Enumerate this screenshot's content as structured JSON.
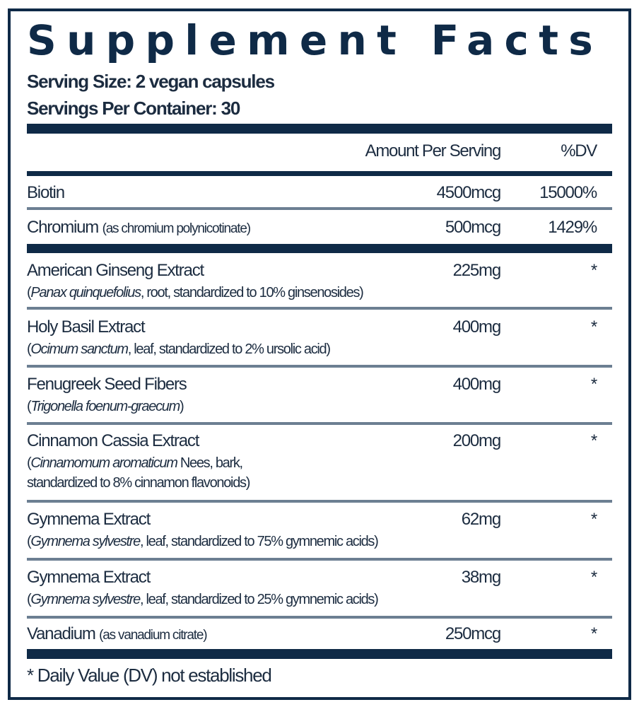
{
  "title": "Supplement Facts",
  "serving_size": "Serving Size: 2 vegan capsules",
  "servings_per_container": "Servings Per Container: 30",
  "header": {
    "amount": "Amount Per Serving",
    "dv": "%DV"
  },
  "vitamins": [
    {
      "name": "Biotin",
      "note": "",
      "amount": "4500mcg",
      "dv": "15000%"
    },
    {
      "name": "Chromium",
      "note": "(as chromium polynicotinate)",
      "amount": "500mcg",
      "dv": "1429%"
    }
  ],
  "ingredients": [
    {
      "name": "American Ginseng Extract",
      "latin": "Panax quinquefolius",
      "detail": ", root, standardized to 10% ginsenosides)",
      "detail2": "",
      "amount": "225mg",
      "dv": "*"
    },
    {
      "name": "Holy Basil Extract",
      "latin": "Ocimum sanctum",
      "detail": ", leaf, standardized to 2% ursolic acid)",
      "detail2": "",
      "amount": "400mg",
      "dv": "*"
    },
    {
      "name": "Fenugreek Seed Fibers",
      "latin": "Trigonella foenum-graecum",
      "detail": ")",
      "detail2": "",
      "amount": "400mg",
      "dv": "*"
    },
    {
      "name": "Cinnamon Cassia Extract",
      "latin": "Cinnamomum aromaticum",
      "detail": " Nees, bark,",
      "detail2": "standardized to 8% cinnamon flavonoids)",
      "amount": "200mg",
      "dv": "*"
    },
    {
      "name": "Gymnema Extract",
      "latin": "Gymnema sylvestre",
      "detail": ", leaf, standardized to 75% gymnemic acids)",
      "detail2": "",
      "amount": "62mg",
      "dv": "*"
    },
    {
      "name": "Gymnema Extract",
      "latin": "Gymnema sylvestre",
      "detail": ", leaf, standardized to 25% gymnemic acids)",
      "detail2": "",
      "amount": "38mg",
      "dv": "*"
    }
  ],
  "vanadium": {
    "name": "Vanadium",
    "note": "(as vanadium citrate)",
    "amount": "250mcg",
    "dv": "*"
  },
  "footnote": "* Daily Value (DV) not established",
  "colors": {
    "navy": "#0f2a47",
    "text": "#1c2c40",
    "rule": "#6c7f92"
  }
}
